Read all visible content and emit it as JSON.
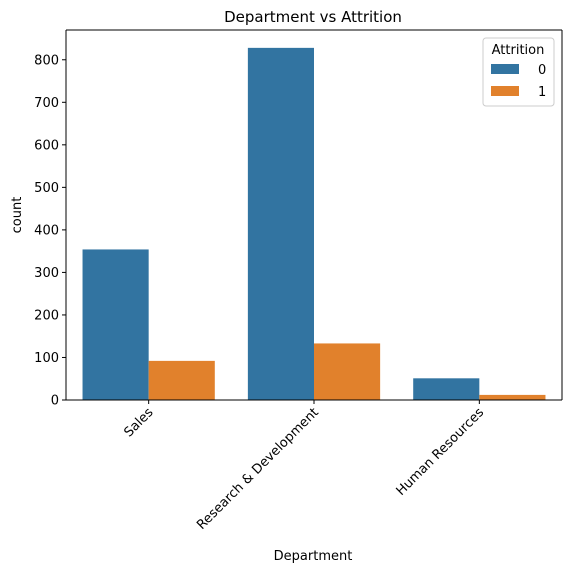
{
  "chart_data": {
    "type": "bar",
    "title": "Department vs Attrition",
    "xlabel": "Department",
    "ylabel": "count",
    "categories": [
      "Sales",
      "Research & Development",
      "Human Resources"
    ],
    "series": [
      {
        "name": "0",
        "values": [
          354,
          828,
          51
        ],
        "color": "#3274a1"
      },
      {
        "name": "1",
        "values": [
          92,
          133,
          12
        ],
        "color": "#e1812c"
      }
    ],
    "ylim": [
      0,
      870
    ],
    "yticks": [
      0,
      100,
      200,
      300,
      400,
      500,
      600,
      700,
      800
    ],
    "legend": {
      "title": "Attrition",
      "placement": "top-right"
    },
    "grid": false
  }
}
